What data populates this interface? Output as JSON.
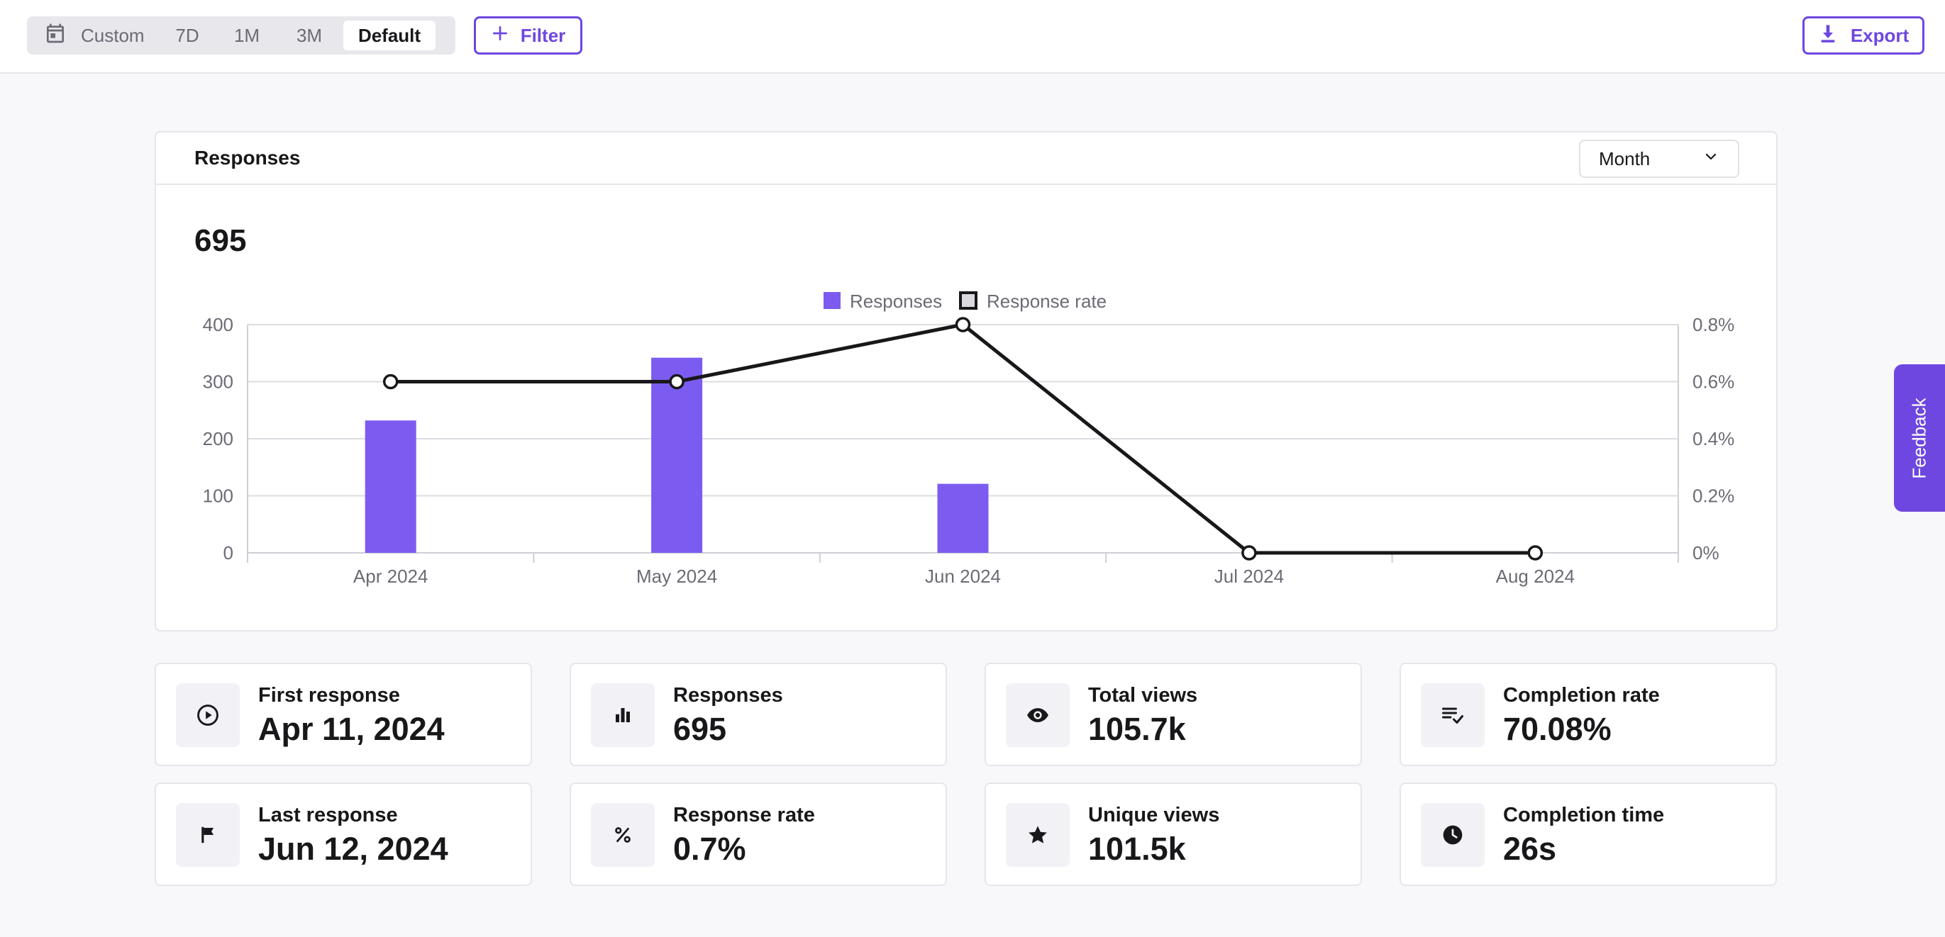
{
  "toolbar": {
    "ranges": [
      {
        "label": "Custom"
      },
      {
        "label": "7D"
      },
      {
        "label": "1M"
      },
      {
        "label": "3M"
      },
      {
        "label": "Default"
      }
    ],
    "selected_range": "Default",
    "filter_label": "Filter",
    "export_label": "Export"
  },
  "chart_card": {
    "title": "Responses",
    "period_select": "Month",
    "total": "695"
  },
  "chart_data": {
    "type": "bar+line",
    "categories": [
      "Apr 2024",
      "May 2024",
      "Jun 2024",
      "Jul 2024",
      "Aug 2024"
    ],
    "series": [
      {
        "name": "Responses",
        "kind": "bar",
        "axis": "left",
        "values": [
          232,
          342,
          121,
          0,
          0
        ],
        "color": "#7c5cf0"
      },
      {
        "name": "Response rate",
        "kind": "line",
        "axis": "right",
        "values": [
          0.6,
          0.6,
          0.8,
          0,
          0
        ],
        "color": "#18181b"
      }
    ],
    "left_axis": {
      "ticks": [
        "0",
        "100",
        "200",
        "300",
        "400"
      ],
      "range": [
        0,
        400
      ]
    },
    "right_axis": {
      "ticks": [
        "0%",
        "0.2%",
        "0.4%",
        "0.6%",
        "0.8%"
      ],
      "range": [
        0,
        0.8
      ]
    },
    "legend": [
      "Responses",
      "Response rate"
    ],
    "legend_position": "top-center",
    "grid": true
  },
  "stats": [
    {
      "label": "First response",
      "value": "Apr 11, 2024",
      "icon": "play-circle-icon"
    },
    {
      "label": "Responses",
      "value": "695",
      "icon": "bar-chart-icon"
    },
    {
      "label": "Total views",
      "value": "105.7k",
      "icon": "eye-icon"
    },
    {
      "label": "Completion rate",
      "value": "70.08%",
      "icon": "list-check-icon"
    },
    {
      "label": "Last response",
      "value": "Jun 12, 2024",
      "icon": "flag-icon"
    },
    {
      "label": "Response rate",
      "value": "0.7%",
      "icon": "percent-icon"
    },
    {
      "label": "Unique views",
      "value": "101.5k",
      "icon": "star-icon"
    },
    {
      "label": "Completion time",
      "value": "26s",
      "icon": "clock-icon"
    }
  ],
  "feedback_label": "Feedback",
  "colors": {
    "accent": "#6e47e0",
    "bar": "#7c5cf0",
    "line": "#18181b"
  }
}
